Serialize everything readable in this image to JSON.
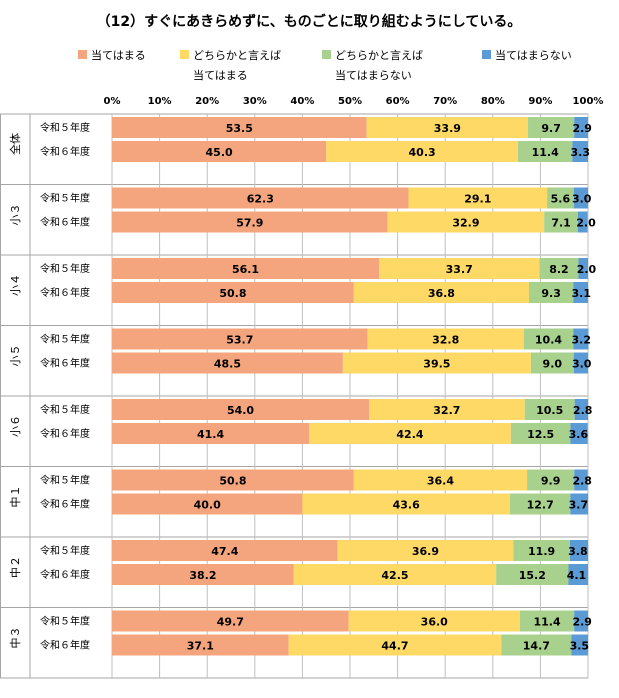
{
  "chart_data": {
    "type": "bar",
    "orientation": "horizontal-stacked-percent",
    "title": "（12）すぐにあきらめずに、ものごとに取り組むようにしている。",
    "xlim": [
      0,
      100
    ],
    "x_ticks": [
      "0%",
      "10%",
      "20%",
      "30%",
      "40%",
      "50%",
      "60%",
      "70%",
      "80%",
      "90%",
      "100%"
    ],
    "legend_position": "top",
    "series": [
      {
        "name": [
          "当てはまる"
        ],
        "color": "#f4a57e"
      },
      {
        "name": [
          "どちらかと言えば",
          "当てはまる"
        ],
        "color": "#ffd966"
      },
      {
        "name": [
          "どちらかと言えば",
          "当てはまらない"
        ],
        "color": "#a9d18e"
      },
      {
        "name": [
          "当てはまらない"
        ],
        "color": "#5b9bd5"
      }
    ],
    "groups": [
      {
        "label": "全体",
        "rows": [
          {
            "label": "令和５年度",
            "values": [
              53.5,
              33.9,
              9.7,
              2.9
            ]
          },
          {
            "label": "令和６年度",
            "values": [
              45.0,
              40.3,
              11.4,
              3.3
            ]
          }
        ]
      },
      {
        "label": "小３",
        "rows": [
          {
            "label": "令和５年度",
            "values": [
              62.3,
              29.1,
              5.6,
              3.0
            ]
          },
          {
            "label": "令和６年度",
            "values": [
              57.9,
              32.9,
              7.1,
              2.0
            ]
          }
        ]
      },
      {
        "label": "小４",
        "rows": [
          {
            "label": "令和５年度",
            "values": [
              56.1,
              33.7,
              8.2,
              2.0
            ]
          },
          {
            "label": "令和６年度",
            "values": [
              50.8,
              36.8,
              9.3,
              3.1
            ]
          }
        ]
      },
      {
        "label": "小５",
        "rows": [
          {
            "label": "令和５年度",
            "values": [
              53.7,
              32.8,
              10.4,
              3.2
            ]
          },
          {
            "label": "令和６年度",
            "values": [
              48.5,
              39.5,
              9.0,
              3.0
            ]
          }
        ]
      },
      {
        "label": "小６",
        "rows": [
          {
            "label": "令和５年度",
            "values": [
              54.0,
              32.7,
              10.5,
              2.8
            ]
          },
          {
            "label": "令和６年度",
            "values": [
              41.4,
              42.4,
              12.5,
              3.6
            ]
          }
        ]
      },
      {
        "label": "中１",
        "rows": [
          {
            "label": "令和５年度",
            "values": [
              50.8,
              36.4,
              9.9,
              2.8
            ]
          },
          {
            "label": "令和６年度",
            "values": [
              40.0,
              43.6,
              12.7,
              3.7
            ]
          }
        ]
      },
      {
        "label": "中２",
        "rows": [
          {
            "label": "令和５年度",
            "values": [
              47.4,
              36.9,
              11.9,
              3.8
            ]
          },
          {
            "label": "令和６年度",
            "values": [
              38.2,
              42.5,
              15.2,
              4.1
            ]
          }
        ]
      },
      {
        "label": "中３",
        "rows": [
          {
            "label": "令和５年度",
            "values": [
              49.7,
              36.0,
              11.4,
              2.9
            ]
          },
          {
            "label": "令和６年度",
            "values": [
              37.1,
              44.7,
              14.7,
              3.5
            ]
          }
        ]
      }
    ]
  }
}
